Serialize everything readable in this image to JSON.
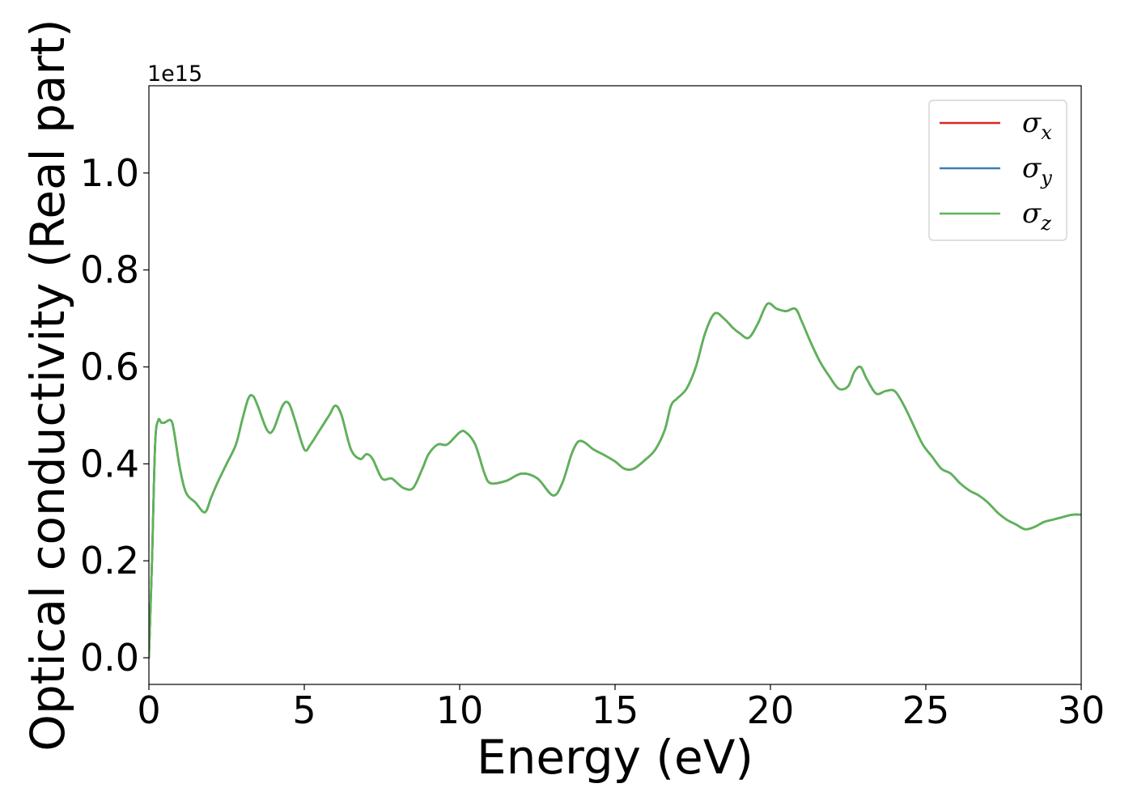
{
  "chart_data": {
    "type": "line",
    "xlabel": "Energy (eV)",
    "ylabel": "Optical conductivity (Real part)",
    "y_offset_label": "1e15",
    "xlim": [
      0,
      30
    ],
    "ylim": [
      -0.055,
      1.18
    ],
    "x_ticks": [
      0,
      5,
      10,
      15,
      20,
      25,
      30
    ],
    "x_tick_labels": [
      "0",
      "5",
      "10",
      "15",
      "20",
      "25",
      "30"
    ],
    "y_ticks": [
      0.0,
      0.2,
      0.4,
      0.6,
      0.8,
      1.0
    ],
    "y_tick_labels": [
      "0.0",
      "0.2",
      "0.4",
      "0.6",
      "0.8",
      "1.0"
    ],
    "grid": false,
    "legend_position": "top-right",
    "series": [
      {
        "name": "σx",
        "base": "σ",
        "sub": "x",
        "color": "#d62728",
        "x": [
          0,
          0.1,
          0.2,
          0.3,
          0.4,
          0.5,
          0.7,
          0.8,
          1.0,
          1.2,
          1.5,
          1.8,
          2.0,
          2.2,
          2.5,
          2.8,
          3.0,
          3.2,
          3.35,
          3.5,
          3.8,
          4.0,
          4.3,
          4.5,
          4.7,
          5.0,
          5.2,
          5.5,
          5.8,
          6.0,
          6.2,
          6.5,
          6.8,
          7.0,
          7.2,
          7.5,
          7.8,
          8.0,
          8.2,
          8.5,
          8.8,
          9.0,
          9.3,
          9.6,
          10.0,
          10.2,
          10.5,
          10.8,
          11.0,
          11.5,
          12.0,
          12.5,
          13.0,
          13.3,
          13.6,
          13.8,
          14.0,
          14.3,
          14.6,
          15.0,
          15.3,
          15.6,
          16.0,
          16.3,
          16.6,
          16.8,
          17.0,
          17.3,
          17.6,
          17.9,
          18.2,
          18.5,
          18.8,
          19.0,
          19.3,
          19.6,
          19.9,
          20.2,
          20.5,
          20.8,
          21.0,
          21.3,
          21.6,
          21.9,
          22.2,
          22.5,
          22.7,
          22.9,
          23.1,
          23.4,
          23.7,
          24.0,
          24.3,
          24.6,
          24.9,
          25.2,
          25.5,
          25.8,
          26.1,
          26.4,
          26.7,
          27.0,
          27.3,
          27.6,
          27.9,
          28.2,
          28.5,
          28.8,
          29.1,
          29.4,
          29.7,
          30.0
        ],
        "y": [
          0.0,
          0.2,
          0.44,
          0.49,
          0.485,
          0.485,
          0.49,
          0.47,
          0.39,
          0.34,
          0.32,
          0.3,
          0.33,
          0.36,
          0.4,
          0.44,
          0.49,
          0.535,
          0.54,
          0.52,
          0.47,
          0.47,
          0.52,
          0.525,
          0.49,
          0.43,
          0.44,
          0.47,
          0.5,
          0.52,
          0.5,
          0.43,
          0.41,
          0.42,
          0.41,
          0.37,
          0.37,
          0.36,
          0.35,
          0.35,
          0.39,
          0.42,
          0.44,
          0.44,
          0.465,
          0.465,
          0.44,
          0.38,
          0.36,
          0.365,
          0.38,
          0.37,
          0.335,
          0.36,
          0.42,
          0.445,
          0.445,
          0.43,
          0.42,
          0.405,
          0.39,
          0.39,
          0.41,
          0.43,
          0.47,
          0.52,
          0.535,
          0.555,
          0.6,
          0.67,
          0.71,
          0.7,
          0.68,
          0.67,
          0.66,
          0.69,
          0.73,
          0.72,
          0.715,
          0.72,
          0.695,
          0.65,
          0.61,
          0.58,
          0.555,
          0.56,
          0.59,
          0.6,
          0.575,
          0.545,
          0.55,
          0.55,
          0.52,
          0.48,
          0.44,
          0.415,
          0.39,
          0.38,
          0.36,
          0.345,
          0.335,
          0.32,
          0.3,
          0.285,
          0.275,
          0.265,
          0.27,
          0.28,
          0.285,
          0.29,
          0.295,
          0.295
        ]
      },
      {
        "name": "σy",
        "base": "σ",
        "sub": "y",
        "color": "#3b7fb8",
        "x": [
          0,
          0.1,
          0.2,
          0.3,
          0.4,
          0.5,
          0.7,
          0.8,
          1.0,
          1.2,
          1.5,
          1.8,
          2.0,
          2.2,
          2.5,
          2.8,
          3.0,
          3.2,
          3.35,
          3.5,
          3.8,
          4.0,
          4.3,
          4.5,
          4.7,
          5.0,
          5.2,
          5.5,
          5.8,
          6.0,
          6.2,
          6.5,
          6.8,
          7.0,
          7.2,
          7.5,
          7.8,
          8.0,
          8.2,
          8.5,
          8.8,
          9.0,
          9.3,
          9.6,
          10.0,
          10.2,
          10.5,
          10.8,
          11.0,
          11.5,
          12.0,
          12.5,
          13.0,
          13.3,
          13.6,
          13.8,
          14.0,
          14.3,
          14.6,
          15.0,
          15.3,
          15.6,
          16.0,
          16.3,
          16.6,
          16.8,
          17.0,
          17.3,
          17.6,
          17.9,
          18.2,
          18.5,
          18.8,
          19.0,
          19.3,
          19.6,
          19.9,
          20.2,
          20.5,
          20.8,
          21.0,
          21.3,
          21.6,
          21.9,
          22.2,
          22.5,
          22.7,
          22.9,
          23.1,
          23.4,
          23.7,
          24.0,
          24.3,
          24.6,
          24.9,
          25.2,
          25.5,
          25.8,
          26.1,
          26.4,
          26.7,
          27.0,
          27.3,
          27.6,
          27.9,
          28.2,
          28.5,
          28.8,
          29.1,
          29.4,
          29.7,
          30.0
        ],
        "y": [
          0.0,
          0.2,
          0.44,
          0.49,
          0.485,
          0.485,
          0.49,
          0.47,
          0.39,
          0.34,
          0.32,
          0.3,
          0.33,
          0.36,
          0.4,
          0.44,
          0.49,
          0.535,
          0.54,
          0.52,
          0.47,
          0.47,
          0.52,
          0.525,
          0.49,
          0.43,
          0.44,
          0.47,
          0.5,
          0.52,
          0.5,
          0.43,
          0.41,
          0.42,
          0.41,
          0.37,
          0.37,
          0.36,
          0.35,
          0.35,
          0.39,
          0.42,
          0.44,
          0.44,
          0.465,
          0.465,
          0.44,
          0.38,
          0.36,
          0.365,
          0.38,
          0.37,
          0.335,
          0.36,
          0.42,
          0.445,
          0.445,
          0.43,
          0.42,
          0.405,
          0.39,
          0.39,
          0.41,
          0.43,
          0.47,
          0.52,
          0.535,
          0.555,
          0.6,
          0.67,
          0.71,
          0.7,
          0.68,
          0.67,
          0.66,
          0.69,
          0.73,
          0.72,
          0.715,
          0.72,
          0.695,
          0.65,
          0.61,
          0.58,
          0.555,
          0.56,
          0.59,
          0.6,
          0.575,
          0.545,
          0.55,
          0.55,
          0.52,
          0.48,
          0.44,
          0.415,
          0.39,
          0.38,
          0.36,
          0.345,
          0.335,
          0.32,
          0.3,
          0.285,
          0.275,
          0.265,
          0.27,
          0.28,
          0.285,
          0.29,
          0.295,
          0.295
        ]
      },
      {
        "name": "σz",
        "base": "σ",
        "sub": "z",
        "color": "#5cb554",
        "x": [
          0,
          0.1,
          0.2,
          0.3,
          0.4,
          0.5,
          0.7,
          0.8,
          1.0,
          1.2,
          1.5,
          1.8,
          2.0,
          2.2,
          2.5,
          2.8,
          3.0,
          3.2,
          3.35,
          3.5,
          3.8,
          4.0,
          4.3,
          4.5,
          4.7,
          5.0,
          5.2,
          5.5,
          5.8,
          6.0,
          6.2,
          6.5,
          6.8,
          7.0,
          7.2,
          7.5,
          7.8,
          8.0,
          8.2,
          8.5,
          8.8,
          9.0,
          9.3,
          9.6,
          10.0,
          10.2,
          10.5,
          10.8,
          11.0,
          11.5,
          12.0,
          12.5,
          13.0,
          13.3,
          13.6,
          13.8,
          14.0,
          14.3,
          14.6,
          15.0,
          15.3,
          15.6,
          16.0,
          16.3,
          16.6,
          16.8,
          17.0,
          17.3,
          17.6,
          17.9,
          18.2,
          18.5,
          18.8,
          19.0,
          19.3,
          19.6,
          19.9,
          20.2,
          20.5,
          20.8,
          21.0,
          21.3,
          21.6,
          21.9,
          22.2,
          22.5,
          22.7,
          22.9,
          23.1,
          23.4,
          23.7,
          24.0,
          24.3,
          24.6,
          24.9,
          25.2,
          25.5,
          25.8,
          26.1,
          26.4,
          26.7,
          27.0,
          27.3,
          27.6,
          27.9,
          28.2,
          28.5,
          28.8,
          29.1,
          29.4,
          29.7,
          30.0
        ],
        "y": [
          0.0,
          0.2,
          0.44,
          0.49,
          0.485,
          0.485,
          0.49,
          0.47,
          0.39,
          0.34,
          0.32,
          0.3,
          0.33,
          0.36,
          0.4,
          0.44,
          0.49,
          0.535,
          0.54,
          0.52,
          0.47,
          0.47,
          0.52,
          0.525,
          0.49,
          0.43,
          0.44,
          0.47,
          0.5,
          0.52,
          0.5,
          0.43,
          0.41,
          0.42,
          0.41,
          0.37,
          0.37,
          0.36,
          0.35,
          0.35,
          0.39,
          0.42,
          0.44,
          0.44,
          0.465,
          0.465,
          0.44,
          0.38,
          0.36,
          0.365,
          0.38,
          0.37,
          0.335,
          0.36,
          0.42,
          0.445,
          0.445,
          0.43,
          0.42,
          0.405,
          0.39,
          0.39,
          0.41,
          0.43,
          0.47,
          0.52,
          0.535,
          0.555,
          0.6,
          0.67,
          0.71,
          0.7,
          0.68,
          0.67,
          0.66,
          0.69,
          0.73,
          0.72,
          0.715,
          0.72,
          0.695,
          0.65,
          0.61,
          0.58,
          0.555,
          0.56,
          0.59,
          0.6,
          0.575,
          0.545,
          0.55,
          0.55,
          0.52,
          0.48,
          0.44,
          0.415,
          0.39,
          0.38,
          0.36,
          0.345,
          0.335,
          0.32,
          0.3,
          0.285,
          0.275,
          0.265,
          0.27,
          0.28,
          0.285,
          0.29,
          0.295,
          0.295
        ]
      }
    ]
  }
}
